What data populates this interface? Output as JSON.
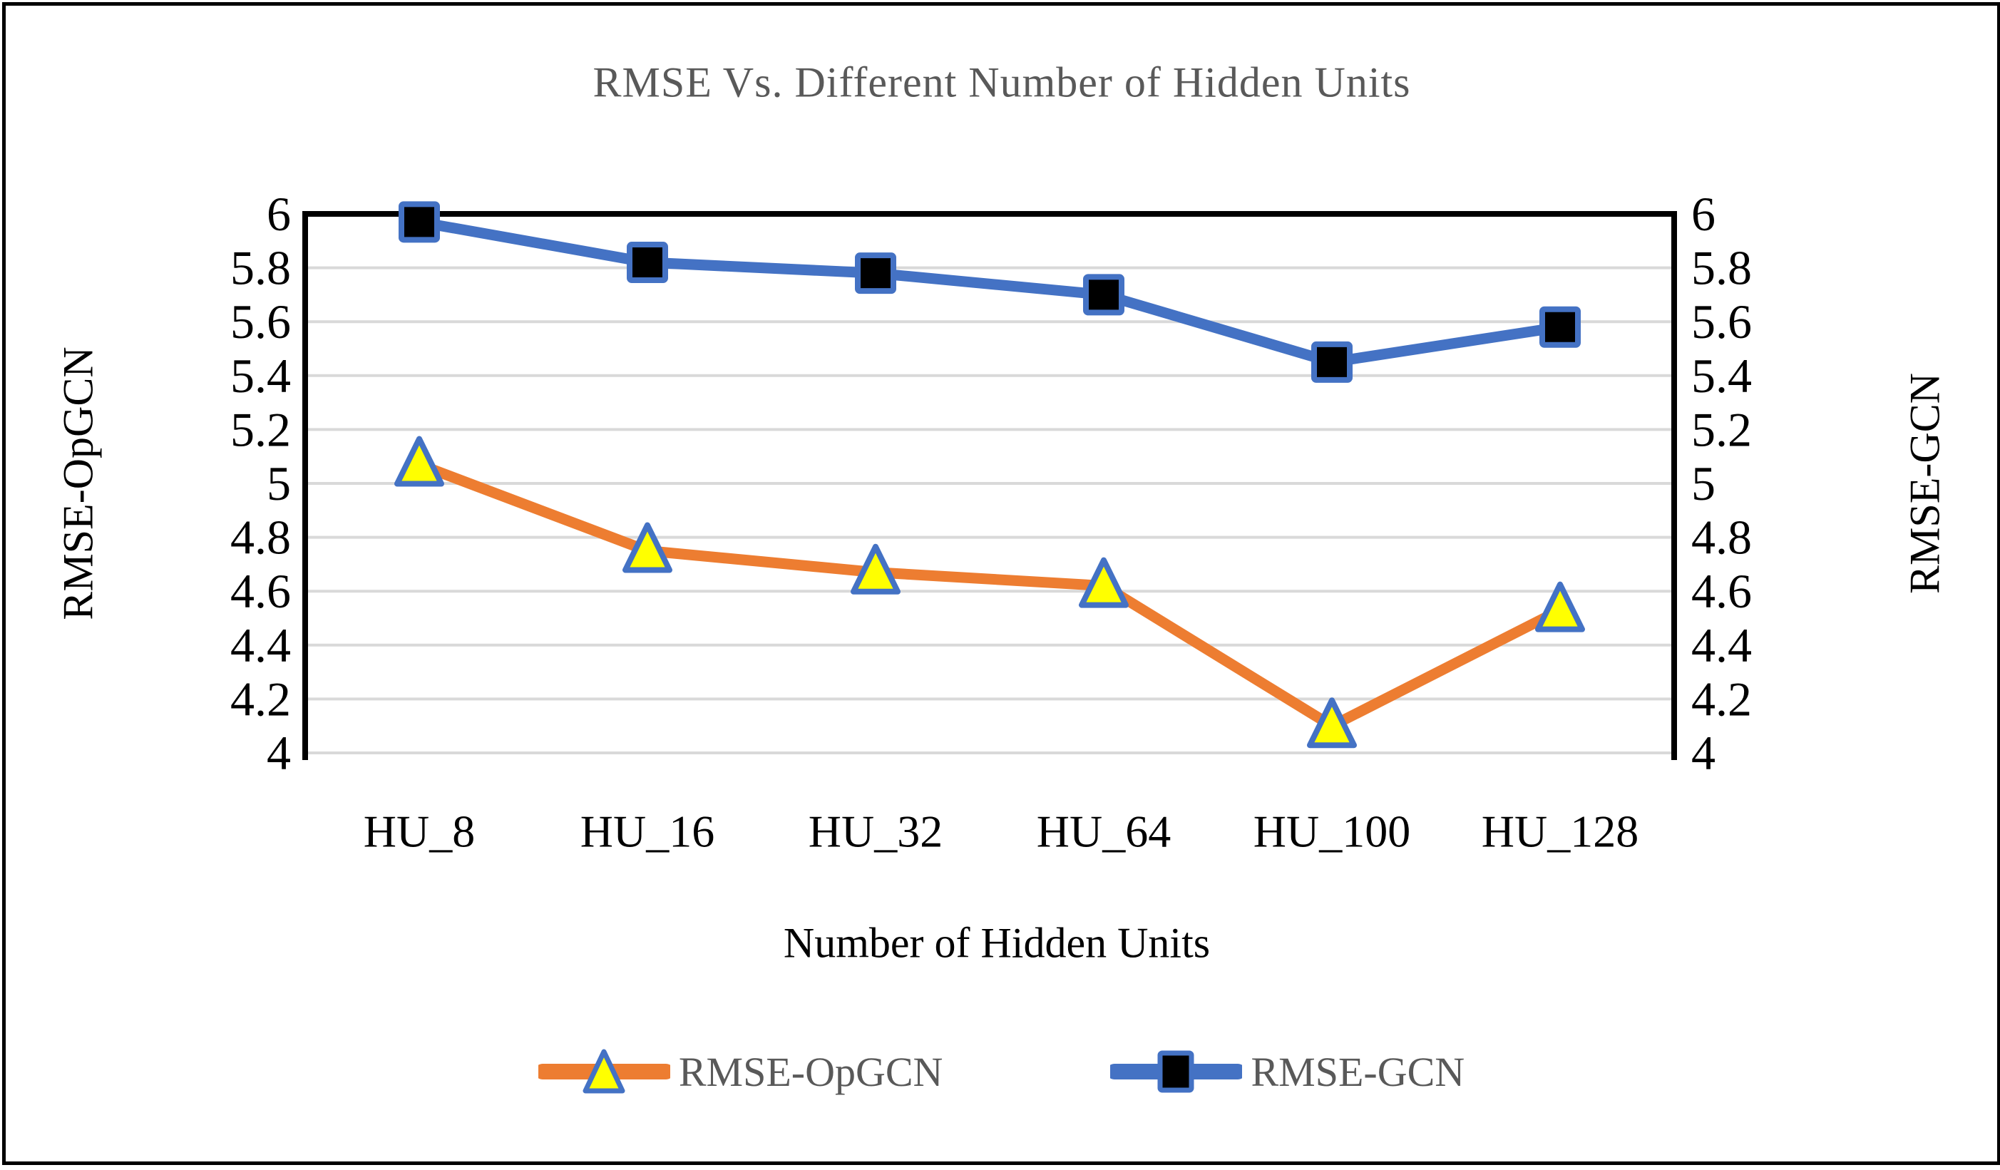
{
  "chart_data": {
    "type": "line",
    "title": "RMSE Vs. Different Number of Hidden Units",
    "categories": [
      "HU_8",
      "HU_16",
      "HU_32",
      "HU_64",
      "HU_100",
      "HU_128"
    ],
    "series": [
      {
        "name": "RMSE-OpGCN",
        "values": [
          5.07,
          4.75,
          4.67,
          4.62,
          4.1,
          4.53
        ],
        "line_color": "#ED7D31",
        "marker": "triangle",
        "marker_fill": "#FFFF00",
        "marker_border": "#4472C4"
      },
      {
        "name": "RMSE-GCN",
        "values": [
          5.97,
          5.82,
          5.78,
          5.7,
          5.45,
          5.58
        ],
        "line_color": "#4472C4",
        "marker": "square",
        "marker_fill": "#000000",
        "marker_border": "#4472C4"
      }
    ],
    "xlabel": "Number of Hidden Units",
    "ylabel_left": "RMSE-OpGCN",
    "ylabel_right": "RMSE-GCN",
    "ylim": [
      4,
      6
    ],
    "ytick_step": 0.2,
    "yticks": [
      "6",
      "5.8",
      "5.6",
      "5.4",
      "5.2",
      "5",
      "4.8",
      "4.6",
      "4.4",
      "4.2",
      "4"
    ],
    "grid": true,
    "legend_position": "bottom"
  },
  "colors": {
    "gridline": "#D9D9D9",
    "axis_line": "#000000",
    "tick_text": "#000000",
    "title_text": "#595959",
    "legend_text": "#595959",
    "figure_border": "#000000"
  }
}
